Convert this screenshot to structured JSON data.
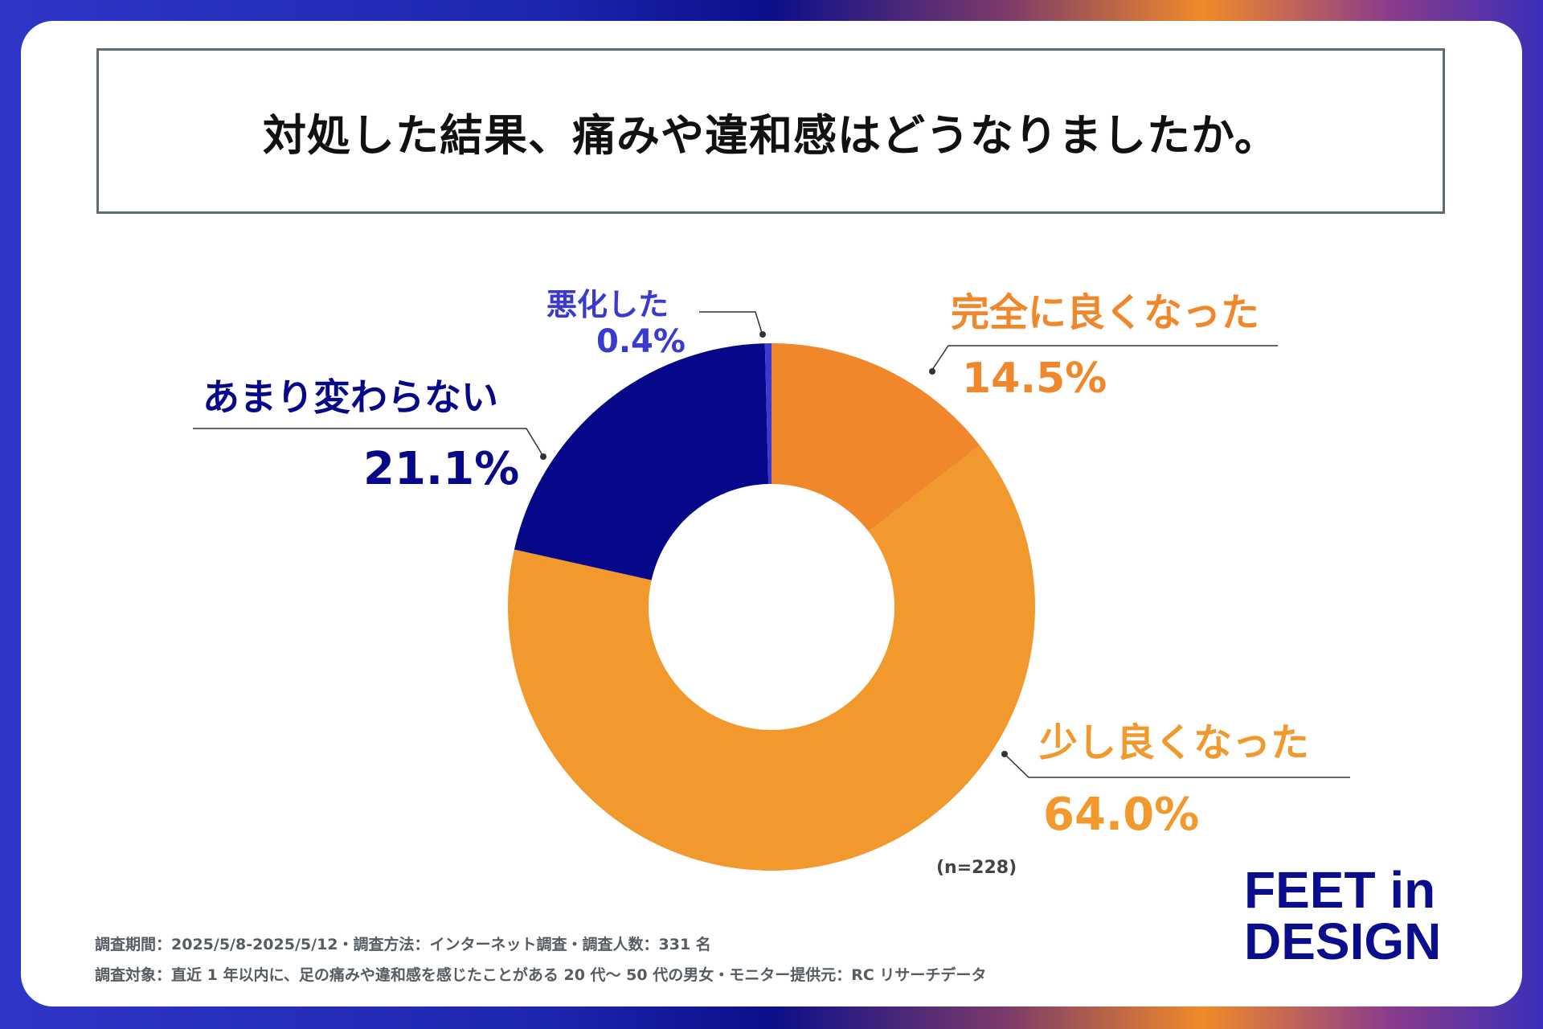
{
  "title": "対処した結果、痛みや違和感はどうなりましたか。",
  "sample_note": "(n=228)",
  "footer": {
    "line1": "調査期間：2025/5/8-2025/5/12・調査方法：インターネット調査・調査人数：331 名",
    "line2": "調査対象：直近 1 年以内に、足の痛みや違和感を感じたことがある 20 代〜 50 代の男女・モニター提供元：RC リサーチデータ"
  },
  "logo": {
    "line1": "FEET in",
    "line2": "DESIGN"
  },
  "chart_data": {
    "type": "pie",
    "donut": true,
    "start": "top, clockwise",
    "slices": [
      {
        "label": "完全に良くなった",
        "value": 14.5,
        "display": "14.5%",
        "color": "#f0872a"
      },
      {
        "label": "少し良くなった",
        "value": 64.0,
        "display": "64.0%",
        "color": "#f2992e"
      },
      {
        "label": "あまり変わらない",
        "value": 21.1,
        "display": "21.1%",
        "color": "#07078a"
      },
      {
        "label": "悪化した",
        "value": 0.4,
        "display": "0.4%",
        "color": "#3a3ad0"
      }
    ]
  }
}
